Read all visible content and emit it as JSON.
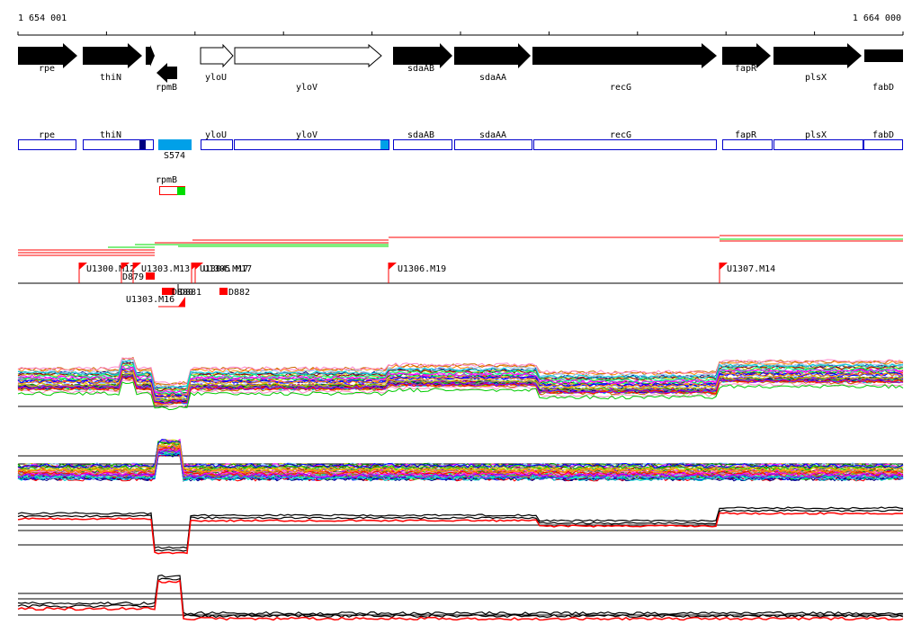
{
  "coordinates": {
    "start": "1 654 001",
    "end": "1 664 000"
  },
  "colors": {
    "feature": "#0000cc",
    "feature_fill_dark": "#000080",
    "feature_fill_light": "#00a0e8",
    "marker": "#ff0000",
    "probe_green": "#00dd00",
    "gene_arrow": "#000000"
  },
  "genes": [
    {
      "name": "rpe",
      "strand": "+",
      "filled": true
    },
    {
      "name": "thiN",
      "strand": "+",
      "filled": true
    },
    {
      "name": "rpmB",
      "strand": "-",
      "filled": true
    },
    {
      "name": "yloU",
      "strand": "+",
      "filled": false
    },
    {
      "name": "yloV",
      "strand": "+",
      "filled": false
    },
    {
      "name": "sdaAB",
      "strand": "+",
      "filled": true
    },
    {
      "name": "sdaAA",
      "strand": "+",
      "filled": true
    },
    {
      "name": "recG",
      "strand": "+",
      "filled": true
    },
    {
      "name": "fapR",
      "strand": "+",
      "filled": true
    },
    {
      "name": "plsX",
      "strand": "+",
      "filled": true
    },
    {
      "name": "fabD",
      "strand": "+",
      "filled": true
    }
  ],
  "feature_boxes": [
    "rpe",
    "thiN",
    "yloU",
    "yloV",
    "sdaAB",
    "sdaAA",
    "recG",
    "fapR",
    "plsX",
    "fabD"
  ],
  "small_rna": {
    "label": "S574"
  },
  "probe": {
    "label": "rpmB"
  },
  "upstream_markers": [
    {
      "label": "U1300.M12"
    },
    {
      "label": "U1303.M13"
    },
    {
      "label": "U1304.M17"
    },
    {
      "label": "U1305.M17"
    },
    {
      "label": "U1306.M19"
    },
    {
      "label": "U1307.M14"
    }
  ],
  "downstream_markers": [
    {
      "label": "D879"
    },
    {
      "label": "U1303.M16"
    },
    {
      "label": "D880"
    },
    {
      "label": "D881"
    },
    {
      "label": "D882"
    }
  ]
}
